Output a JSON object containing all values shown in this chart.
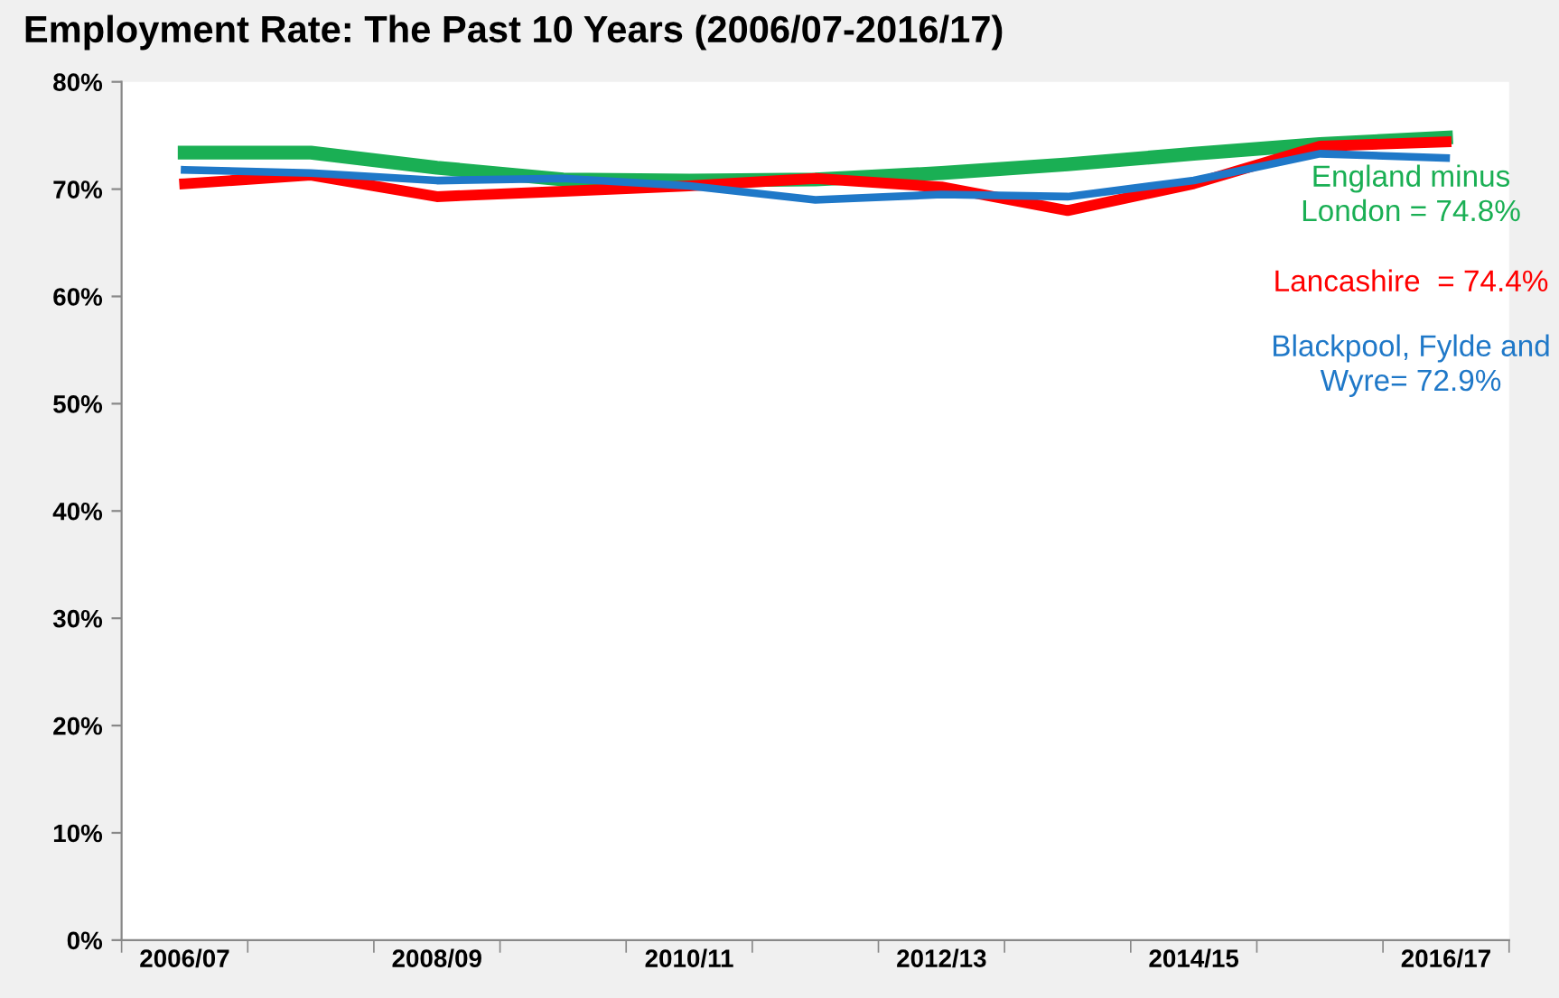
{
  "chart_data": {
    "type": "line",
    "title": "Employment Rate: The Past 10 Years (2006/07-2016/17)",
    "categories": [
      "2006/07",
      null,
      "2008/09",
      null,
      "2010/11",
      null,
      "2012/13",
      null,
      "2014/15",
      null,
      "2016/17"
    ],
    "series": [
      {
        "color": "#1aaf54",
        "values": [
          73.4,
          73.4,
          72.0,
          70.9,
          70.8,
          70.9,
          71.5,
          72.3,
          73.3,
          74.2,
          74.8
        ]
      },
      {
        "color": "#ff0000",
        "values": [
          70.5,
          71.3,
          69.3,
          69.8,
          70.3,
          71.0,
          70.2,
          68.0,
          70.5,
          74.0,
          74.4
        ]
      },
      {
        "color": "#1f78c8",
        "values": [
          71.8,
          71.5,
          70.8,
          71.0,
          70.3,
          69.0,
          69.5,
          69.3,
          70.8,
          73.3,
          72.9
        ]
      }
    ],
    "annotations": [
      "England minus\nLondon = 74.8%",
      "Lancashire  = 74.4%",
      "Blackpool, Fylde and\nWyre= 72.9%"
    ],
    "ylim": [
      0,
      80
    ],
    "yticks": [
      {
        "value": 0,
        "label": "0%"
      },
      {
        "value": 10,
        "label": "10%"
      },
      {
        "value": 20,
        "label": "20%"
      },
      {
        "value": 30,
        "label": "30%"
      },
      {
        "value": 40,
        "label": "40%"
      },
      {
        "value": 50,
        "label": "50%"
      },
      {
        "value": 60,
        "label": "60%"
      },
      {
        "value": 70,
        "label": "70%"
      },
      {
        "value": 80,
        "label": "80%"
      }
    ],
    "grid": false,
    "legend": false,
    "marker": "none",
    "line_style": "solid"
  }
}
